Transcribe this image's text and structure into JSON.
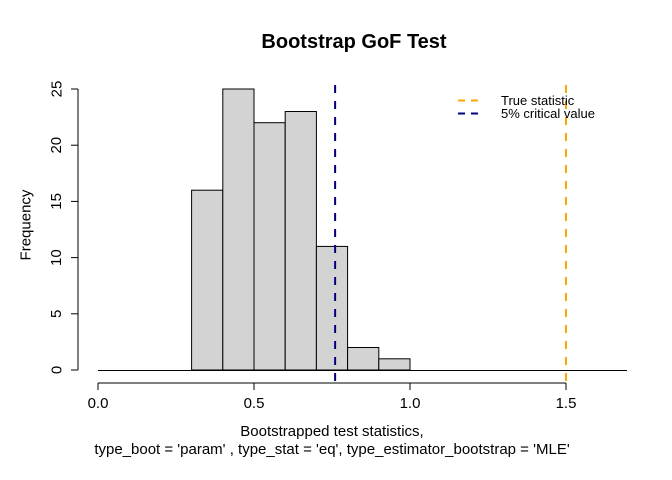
{
  "chart_data": {
    "type": "bar",
    "title": "Bootstrap GoF Test",
    "ylabel": "Frequency",
    "xlabel_lines": [
      "Bootstrapped test statistics,",
      "type_boot = 'param' , type_stat = 'eq', type_estimator_bootstrap = 'MLE'"
    ],
    "histogram": {
      "bin_start": 0.3,
      "bin_width": 0.1,
      "frequencies": [
        16,
        25,
        22,
        23,
        11,
        2,
        1
      ],
      "bar_fill": "#d3d3d3",
      "bar_stroke": "#000000"
    },
    "xlim": [
      0,
      1.5
    ],
    "ylim": [
      0,
      25
    ],
    "x_tick_values": [
      0,
      0.5,
      1.0,
      1.5
    ],
    "x_tick_labels": [
      "0.0",
      "0.5",
      "1.0",
      "1.5"
    ],
    "y_tick_values": [
      0,
      5,
      10,
      15,
      20,
      25
    ],
    "y_tick_labels": [
      "0",
      "5",
      "10",
      "15",
      "20",
      "25"
    ],
    "grid": false,
    "axis_color": "#000000",
    "vlines": [
      {
        "name": "critical-value-line",
        "x": 0.76,
        "color": "#000080",
        "style": "dashed"
      },
      {
        "name": "true-statistic-line",
        "x": 1.5,
        "color": "#ffa500",
        "style": "dashed"
      }
    ],
    "legend": {
      "position": "topright",
      "frame": false,
      "items": [
        {
          "label": "True statistic",
          "color": "#ffa500",
          "style": "dashed"
        },
        {
          "label": "5% critical value",
          "color": "#000080",
          "style": "dashed"
        }
      ]
    }
  }
}
